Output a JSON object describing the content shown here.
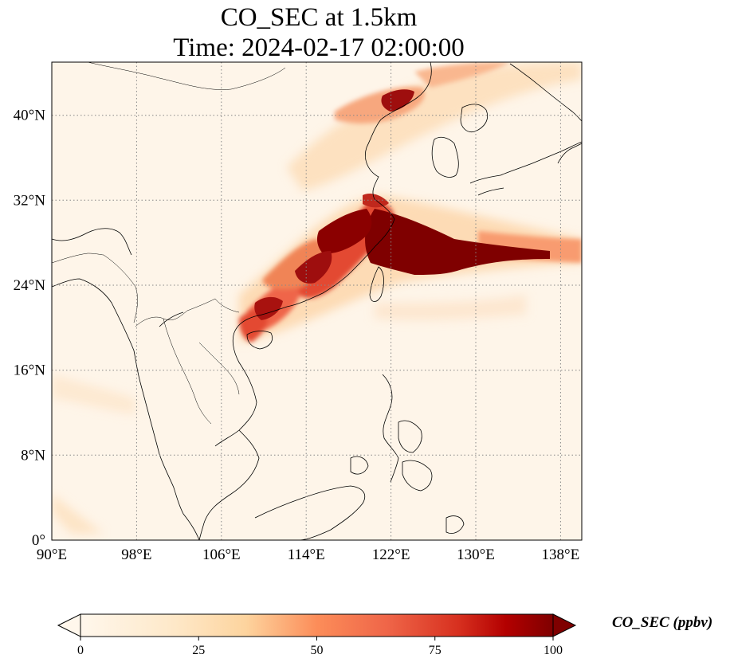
{
  "title": {
    "line1": "CO_SEC at 1.5km",
    "line2": "Time: 2024-02-17 02:00:00"
  },
  "map": {
    "variable": "CO_SEC",
    "level": "1.5km",
    "lon_range": [
      90,
      140
    ],
    "lat_range": [
      0,
      45
    ],
    "x_ticks": [
      "90°E",
      "98°E",
      "106°E",
      "114°E",
      "122°E",
      "130°E",
      "138°E"
    ],
    "x_tick_values": [
      90,
      98,
      106,
      114,
      122,
      130,
      138
    ],
    "y_ticks": [
      "0°",
      "8°N",
      "16°N",
      "24°N",
      "32°N",
      "40°N"
    ],
    "y_tick_values": [
      0,
      8,
      16,
      24,
      32,
      40
    ],
    "gridlines": "dotted",
    "colormap": "OrRd",
    "colors": {
      "low": "#fff7ec",
      "mid_low": "#fdd49e",
      "mid": "#fc8d59",
      "high": "#d7301f",
      "max": "#7f0000"
    }
  },
  "colorbar": {
    "label": "CO_SEC (ppbv)",
    "ticks": [
      "0",
      "25",
      "50",
      "75",
      "100"
    ],
    "tick_values": [
      0,
      25,
      50,
      75,
      100
    ],
    "range": [
      0,
      100
    ],
    "extend": "both"
  }
}
